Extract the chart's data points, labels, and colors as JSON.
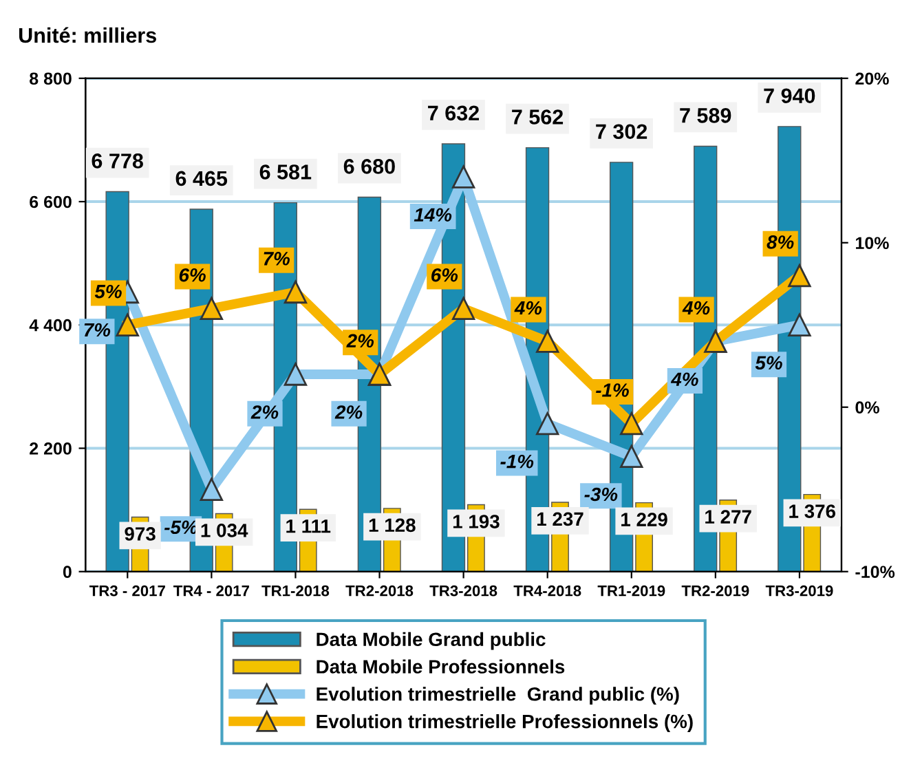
{
  "chart_data": {
    "type": "bar",
    "title": "Unité: milliers",
    "categories": [
      "TR3 - 2017",
      "TR4 - 2017",
      "TR1-2018",
      "TR2-2018",
      "TR3-2018",
      "TR4-2018",
      "TR1-2019",
      "TR2-2019",
      "TR3-2019"
    ],
    "series": [
      {
        "name": "Data Mobile Grand public",
        "color": "#1b8db3",
        "values": [
          6778,
          6465,
          6581,
          6680,
          7632,
          7562,
          7302,
          7589,
          7940
        ],
        "value_labels": [
          "6 778",
          "6 465",
          "6 581",
          "6 680",
          "7 632",
          "7 562",
          "7 302",
          "7 589",
          "7 940"
        ]
      },
      {
        "name": "Data Mobile Professionnels",
        "color": "#f2c200",
        "values": [
          973,
          1034,
          1111,
          1128,
          1193,
          1237,
          1229,
          1277,
          1376
        ],
        "value_labels": [
          "973",
          "1 034",
          "1 111",
          "1 128",
          "1 193",
          "1 237",
          "1 229",
          "1 277",
          "1 376"
        ]
      },
      {
        "name": "Evolution trimestrielle  Grand public (%)",
        "type": "line",
        "axis": "y2",
        "marker": "triangle",
        "color": "#8fc9ee",
        "values": [
          7,
          -5,
          2,
          2,
          14,
          -1,
          -3,
          4,
          5
        ],
        "value_labels": [
          "7%",
          "-5%",
          "2%",
          "2%",
          "14%",
          "-1%",
          "-3%",
          "4%",
          "5%"
        ]
      },
      {
        "name": "Evolution trimestrielle Professionnels (%)",
        "type": "line",
        "axis": "y2",
        "marker": "triangle",
        "color": "#f7b500",
        "values": [
          5,
          6,
          7,
          2,
          6,
          4,
          -1,
          4,
          8
        ],
        "value_labels": [
          "5%",
          "6%",
          "7%",
          "2%",
          "6%",
          "4%",
          "-1%",
          "4%",
          "8%"
        ]
      }
    ],
    "ylim": [
      0,
      8800
    ],
    "yticks": [
      0,
      {
        "value": 2200,
        "label": "2 200"
      },
      {
        "value": 4400,
        "label": "4 400"
      },
      {
        "value": 6600,
        "label": "6 600"
      },
      {
        "value": 8800,
        "label": "8 800"
      }
    ],
    "y2lim": [
      -10,
      20
    ],
    "y2ticks": [
      {
        "value": -10,
        "label": "-10%"
      },
      {
        "value": 0,
        "label": "0%"
      },
      {
        "value": 10,
        "label": "10%"
      },
      {
        "value": 20,
        "label": "20%"
      }
    ],
    "grid": "y",
    "legend": "bottom"
  }
}
